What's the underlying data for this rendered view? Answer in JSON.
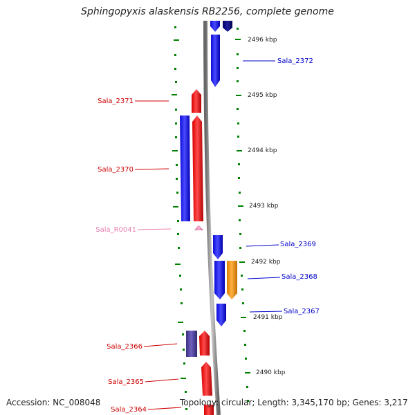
{
  "title": "Sphingopyxis alaskensis RB2256, complete genome",
  "footer": {
    "accession": "Accession: NC_008048",
    "summary": "Topology: circular; Length: 3,345,170 bp; Genes: 3,217"
  },
  "ticks": [
    "2496 kbp",
    "2495 kbp",
    "2494 kbp",
    "2493 kbp",
    "2492 kbp",
    "2491 kbp",
    "2490 kbp"
  ],
  "genes": [
    {
      "id": "Sala_2372",
      "strand": "+",
      "color": "#0000cc"
    },
    {
      "id": "Sala_2371",
      "strand": "-",
      "color": "#cc0000"
    },
    {
      "id": "Sala_2370",
      "strand": "-",
      "color": "#cc0000"
    },
    {
      "id": "Sala_R0041",
      "strand": "-",
      "color": "#e87fb0"
    },
    {
      "id": "Sala_2369",
      "strand": "+",
      "color": "#0000cc"
    },
    {
      "id": "Sala_2368",
      "strand": "+",
      "color": "#0000cc"
    },
    {
      "id": "Sala_2367",
      "strand": "+",
      "color": "#0000cc"
    },
    {
      "id": "Sala_2366",
      "strand": "-",
      "color": "#cc0000"
    },
    {
      "id": "Sala_2365",
      "strand": "-",
      "color": "#cc0000"
    },
    {
      "id": "Sala_2364",
      "strand": "-",
      "color": "#cc0000"
    }
  ],
  "colors": {
    "plus_strand": "#0000ff",
    "minus_strand": "#ff0000",
    "rna": "#e87fb0",
    "orange_feature": "#f59a10",
    "purple_feature": "#4a3f9a",
    "backbone": "#888888",
    "tick": "#008000"
  }
}
